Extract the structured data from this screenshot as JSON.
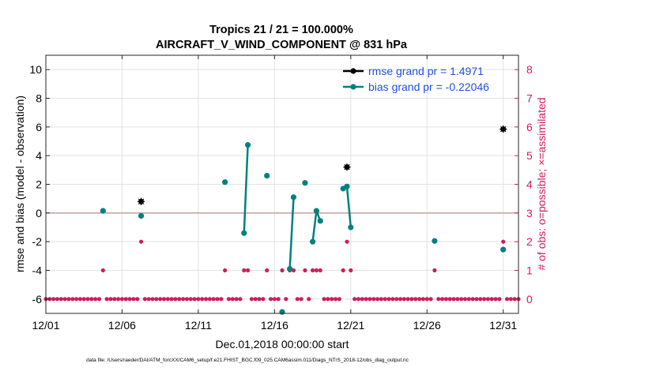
{
  "chart_data": {
    "type": "scatter",
    "title_line1": "Tropics 21 / 21 = 100.000%",
    "title_line2": "AIRCRAFT_V_WIND_COMPONENT @ 831 hPa",
    "xlabel": "Dec.01,2018 00:00:00 start",
    "ylabel_left": "rmse and bias (model - observation)",
    "ylabel_right": "# of obs: o=possible; ×=assimilated",
    "footnote": "data file: /Users/raeder/DAI/ATM_forcXX/CAM6_setup/f.e21.FHIST_BGC.f09_025.CAM6assim.011/Diags_NTrS_2018-12/obs_diag_output.nc",
    "xlim": [
      1,
      32
    ],
    "ylim_left": [
      -7,
      11
    ],
    "ylim_right": [
      -0.5,
      8.5
    ],
    "x_ticks": [
      1,
      6,
      11,
      16,
      21,
      26,
      31
    ],
    "x_tick_labels": [
      "12/01",
      "12/06",
      "12/11",
      "12/16",
      "12/21",
      "12/26",
      "12/31"
    ],
    "y_left_ticks": [
      -6,
      -4,
      -2,
      0,
      2,
      4,
      6,
      8,
      10
    ],
    "y_left_tick_labels": [
      "-6",
      "-4",
      "-2",
      "0",
      "2",
      "4",
      "6",
      "8",
      "10"
    ],
    "y_right_ticks": [
      0,
      1,
      2,
      3,
      4,
      5,
      6,
      7,
      8
    ],
    "y_right_tick_labels": [
      "0",
      "1",
      "2",
      "3",
      "4",
      "5",
      "6",
      "7",
      "8"
    ],
    "grid": true,
    "legend_position": "top-right",
    "colors": {
      "rmse": "#000000",
      "bias": "#00807f",
      "count": "#d01c5c",
      "legend_text": "#1f4fe0",
      "zero_line": "#c8a8a8",
      "grid": "#e2e2e2"
    },
    "series": [
      {
        "name": "rmse grand pr = 1.4971",
        "kind": "rmse",
        "points": [
          {
            "x": 7.25,
            "y": 0.8
          },
          {
            "x": 20.75,
            "y": 3.2
          },
          {
            "x": 31.0,
            "y": 5.85
          }
        ]
      },
      {
        "name": "bias grand pr = -0.22046",
        "kind": "bias",
        "segments": [
          [
            {
              "x": 4.75,
              "y": 0.15
            }
          ],
          [
            {
              "x": 7.25,
              "y": -0.2
            }
          ],
          [
            {
              "x": 12.75,
              "y": 2.15
            }
          ],
          [
            {
              "x": 14.0,
              "y": -1.4
            },
            {
              "x": 14.25,
              "y": 4.75
            }
          ],
          [
            {
              "x": 15.5,
              "y": 2.6
            }
          ],
          [
            {
              "x": 16.5,
              "y": -6.9
            }
          ],
          [
            {
              "x": 17.0,
              "y": -3.9
            },
            {
              "x": 17.25,
              "y": 1.1
            }
          ],
          [
            {
              "x": 18.0,
              "y": 2.1
            }
          ],
          [
            {
              "x": 18.5,
              "y": -2.0
            },
            {
              "x": 18.75,
              "y": 0.15
            },
            {
              "x": 19.0,
              "y": -0.55
            }
          ],
          [
            {
              "x": 20.5,
              "y": 1.7
            },
            {
              "x": 20.75,
              "y": 1.85
            },
            {
              "x": 21.0,
              "y": -1.0
            }
          ],
          [
            {
              "x": 26.5,
              "y": -1.95
            }
          ],
          [
            {
              "x": 31.0,
              "y": -2.55
            }
          ]
        ]
      }
    ],
    "counts": {
      "possible": [
        {
          "x": 4.75,
          "n": 1
        },
        {
          "x": 7.25,
          "n": 2
        },
        {
          "x": 12.75,
          "n": 1
        },
        {
          "x": 14.0,
          "n": 1
        },
        {
          "x": 14.25,
          "n": 1
        },
        {
          "x": 15.5,
          "n": 1
        },
        {
          "x": 16.5,
          "n": 1
        },
        {
          "x": 17.0,
          "n": 1
        },
        {
          "x": 17.25,
          "n": 1
        },
        {
          "x": 18.0,
          "n": 1
        },
        {
          "x": 18.5,
          "n": 1
        },
        {
          "x": 18.75,
          "n": 1
        },
        {
          "x": 19.0,
          "n": 1
        },
        {
          "x": 20.5,
          "n": 1
        },
        {
          "x": 20.75,
          "n": 2
        },
        {
          "x": 21.0,
          "n": 1
        },
        {
          "x": 26.5,
          "n": 1
        },
        {
          "x": 31.0,
          "n": 2
        }
      ],
      "zero_step": 0.25
    },
    "legend": [
      {
        "label": "rmse grand pr = 1.4971",
        "kind": "rmse"
      },
      {
        "label": "bias grand pr = -0.22046",
        "kind": "bias"
      }
    ]
  }
}
